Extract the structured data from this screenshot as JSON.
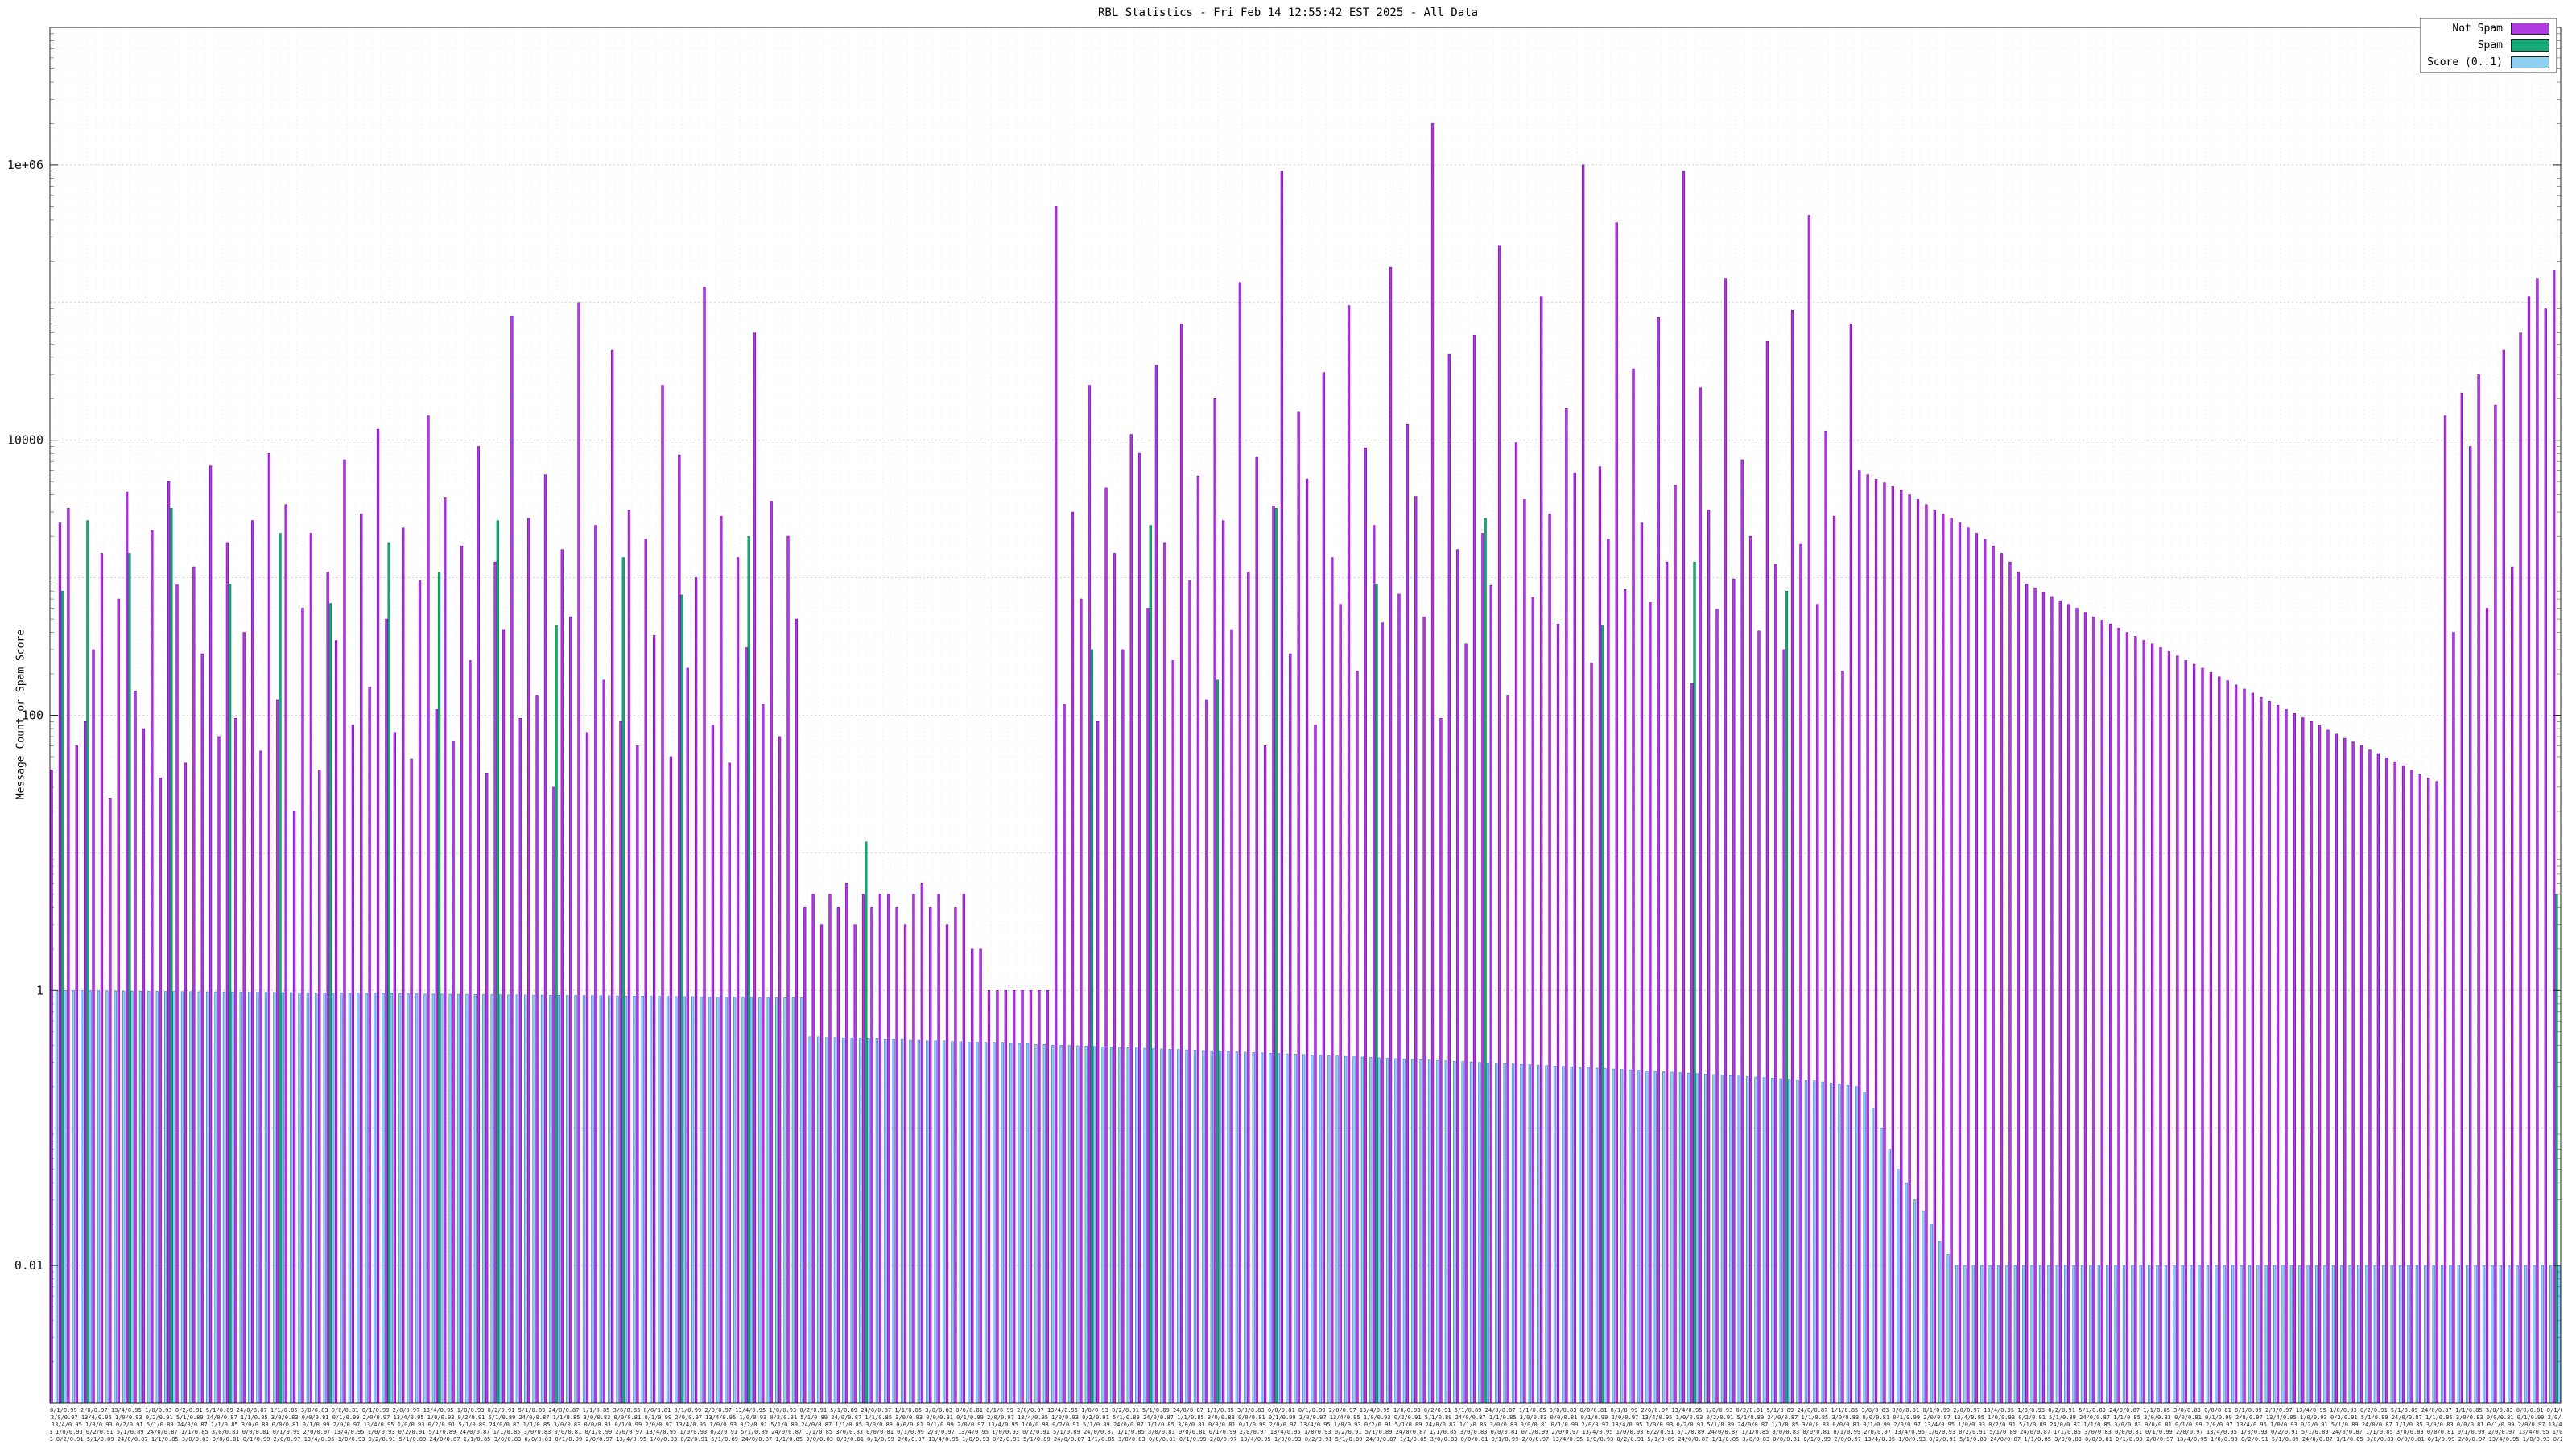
{
  "title": "RBL Statistics - Fri Feb 14 12:55:42 EST 2025 - All Data",
  "y_axis": {
    "title": "Message Count or Spam Score",
    "ticks": [
      {
        "v": 0.01,
        "label": "0.01"
      },
      {
        "v": 1,
        "label": "1"
      },
      {
        "v": 100,
        "label": "100"
      },
      {
        "v": 10000,
        "label": "10000"
      },
      {
        "v": 1000000,
        "label": "1e+06"
      }
    ]
  },
  "x_axis": {
    "note": "per-category x tick labels are illegible at capture resolution",
    "noise": "0/1/0.99 2/0/0.97 13/4/0.95 1/0/0.93 0/2/0.91 5/1/0.89 24/0/0.87 1/1/0.85 3/0/0.83 0/0/0.81 ",
    "noise_repeat": 60,
    "band_rows": 5
  },
  "chart_data": {
    "type": "bar",
    "title": "RBL Statistics - Fri Feb 14 12:55:42 EST 2025 - All Data",
    "xlabel": "",
    "ylabel": "Message Count or Spam Score",
    "log_y": true,
    "ylim": [
      0.001,
      10000000
    ],
    "grid": true,
    "legend_position": "top-right",
    "n_groups": 300,
    "series": [
      {
        "name": "Not Spam",
        "key": "not-spam",
        "color": "#b03be0",
        "stroke": "#7a00b0",
        "values": [
          40,
          2500,
          3200,
          60,
          90,
          300,
          1500,
          25,
          700,
          4200,
          150,
          80,
          2200,
          35,
          5000,
          900,
          45,
          1200,
          280,
          6500,
          70,
          1800,
          95,
          400,
          2600,
          55,
          8000,
          130,
          3400,
          20,
          600,
          2100,
          40,
          1100,
          350,
          7200,
          85,
          2900,
          160,
          12000,
          500,
          75,
          2300,
          48,
          950,
          15000,
          110,
          3800,
          65,
          1700,
          250,
          9000,
          38,
          1300,
          420,
          80000,
          95,
          2700,
          140,
          5600,
          30,
          1600,
          520,
          100000,
          75,
          2400,
          180,
          45000,
          90,
          3100,
          60,
          1900,
          380,
          25000,
          50,
          7800,
          220,
          1000,
          130000,
          85,
          2800,
          45,
          1400,
          310,
          60000,
          120,
          3600,
          70,
          2000,
          500,
          4,
          5,
          3,
          5,
          4,
          6,
          3,
          5,
          4,
          5,
          5,
          4,
          3,
          5,
          6,
          4,
          5,
          3,
          4,
          5,
          2,
          2,
          1,
          1,
          1,
          1,
          1,
          1,
          1,
          1,
          500000,
          120,
          3000,
          700,
          25000,
          90,
          4500,
          1500,
          300,
          11000,
          8000,
          600,
          35000,
          1800,
          250,
          70000,
          950,
          5500,
          130,
          20000,
          2600,
          420,
          140000,
          1100,
          7500,
          60,
          3300,
          900000,
          280,
          16000,
          5200,
          85,
          31000,
          1400,
          640,
          95000,
          210,
          8800,
          2400,
          470,
          180000,
          760,
          13000,
          3900,
          520,
          2000000,
          95,
          42000,
          1600,
          330,
          58000,
          2100,
          880,
          260000,
          140,
          9600,
          3700,
          720,
          110000,
          2900,
          460,
          17000,
          5800,
          1000000,
          240,
          6400,
          1900,
          380000,
          820,
          33000,
          2500,
          660,
          78000,
          1300,
          4700,
          900000,
          170,
          24000,
          3100,
          590,
          150000,
          980,
          7200,
          2000,
          410,
          52000,
          1250,
          300,
          88000,
          1750,
          430000,
          640,
          11500,
          2800,
          210,
          70000,
          6000,
          5600,
          5200,
          4900,
          4600,
          4300,
          4000,
          3700,
          3400,
          3100,
          2900,
          2700,
          2500,
          2300,
          2100,
          1900,
          1700,
          1500,
          1300,
          1100,
          900,
          840,
          780,
          730,
          680,
          640,
          600,
          560,
          520,
          490,
          460,
          430,
          400,
          375,
          350,
          330,
          310,
          290,
          270,
          250,
          235,
          220,
          205,
          190,
          178,
          166,
          155,
          145,
          135,
          126,
          118,
          110,
          103,
          96,
          90,
          84,
          78,
          73,
          68,
          64,
          60,
          56,
          52,
          49,
          46,
          43,
          40,
          37,
          35,
          33,
          15000,
          400,
          22000,
          9000,
          30000,
          600,
          18000,
          45000,
          1200,
          60000,
          110000,
          150000,
          90000,
          170000
        ]
      },
      {
        "name": "Spam",
        "key": "spam",
        "color": "#17a878",
        "stroke": "#0b7a52",
        "length": 300,
        "values_sparse": {
          "1": 800,
          "4": 2600,
          "9": 1500,
          "14": 3200,
          "21": 900,
          "27": 2100,
          "33": 650,
          "40": 1800,
          "46": 1100,
          "53": 2600,
          "60": 450,
          "68": 1400,
          "75": 750,
          "83": 2000,
          "97": 12,
          "124": 300,
          "131": 2400,
          "139": 180,
          "146": 3200,
          "158": 900,
          "171": 2700,
          "185": 450,
          "196": 1300,
          "207": 800,
          "299": 5
        }
      },
      {
        "name": "Score (0..1)",
        "key": "score",
        "color": "#8fd0f0",
        "stroke": "#4169e1",
        "values": [
          1,
          0.999,
          0.997,
          0.996,
          0.995,
          0.993,
          0.992,
          0.991,
          0.989,
          0.988,
          0.987,
          0.985,
          0.984,
          0.983,
          0.981,
          0.98,
          0.979,
          0.977,
          0.976,
          0.975,
          0.974,
          0.972,
          0.971,
          0.97,
          0.968,
          0.967,
          0.966,
          0.964,
          0.963,
          0.962,
          0.961,
          0.959,
          0.958,
          0.957,
          0.955,
          0.954,
          0.953,
          0.951,
          0.95,
          0.949,
          0.948,
          0.946,
          0.945,
          0.944,
          0.942,
          0.941,
          0.94,
          0.938,
          0.937,
          0.936,
          0.935,
          0.933,
          0.932,
          0.931,
          0.929,
          0.928,
          0.927,
          0.925,
          0.924,
          0.923,
          0.922,
          0.92,
          0.919,
          0.918,
          0.916,
          0.915,
          0.914,
          0.912,
          0.911,
          0.91,
          0.909,
          0.907,
          0.906,
          0.905,
          0.903,
          0.902,
          0.901,
          0.899,
          0.898,
          0.897,
          0.896,
          0.894,
          0.893,
          0.892,
          0.89,
          0.889,
          0.888,
          0.886,
          0.885,
          0.884,
          0.46,
          0.46,
          0.455,
          0.455,
          0.45,
          0.45,
          0.45,
          0.445,
          0.445,
          0.44,
          0.44,
          0.44,
          0.435,
          0.435,
          0.43,
          0.43,
          0.43,
          0.425,
          0.425,
          0.42,
          0.42,
          0.42,
          0.415,
          0.415,
          0.41,
          0.41,
          0.41,
          0.405,
          0.405,
          0.4,
          0.4,
          0.398,
          0.396,
          0.394,
          0.392,
          0.39,
          0.388,
          0.386,
          0.384,
          0.382,
          0.38,
          0.378,
          0.376,
          0.374,
          0.372,
          0.37,
          0.368,
          0.366,
          0.364,
          0.362,
          0.36,
          0.358,
          0.356,
          0.354,
          0.352,
          0.35,
          0.348,
          0.346,
          0.344,
          0.342,
          0.34,
          0.338,
          0.336,
          0.334,
          0.332,
          0.33,
          0.328,
          0.326,
          0.324,
          0.322,
          0.32,
          0.318,
          0.316,
          0.314,
          0.312,
          0.31,
          0.308,
          0.306,
          0.304,
          0.302,
          0.3,
          0.298,
          0.296,
          0.294,
          0.292,
          0.29,
          0.288,
          0.286,
          0.284,
          0.282,
          0.28,
          0.278,
          0.276,
          0.274,
          0.272,
          0.27,
          0.268,
          0.266,
          0.264,
          0.262,
          0.26,
          0.258,
          0.256,
          0.254,
          0.252,
          0.25,
          0.248,
          0.246,
          0.244,
          0.242,
          0.24,
          0.238,
          0.236,
          0.234,
          0.232,
          0.23,
          0.228,
          0.226,
          0.224,
          0.222,
          0.22,
          0.216,
          0.212,
          0.208,
          0.204,
          0.2,
          0.18,
          0.14,
          0.1,
          0.07,
          0.05,
          0.04,
          0.03,
          0.025,
          0.02,
          0.015,
          0.012,
          0.01,
          0.01,
          0.01,
          0.01,
          0.01,
          0.01,
          0.01,
          0.01,
          0.01,
          0.01,
          0.01,
          0.01,
          0.01,
          0.01,
          0.01,
          0.01,
          0.01,
          0.01,
          0.01,
          0.01,
          0.01,
          0.01,
          0.01,
          0.01,
          0.01,
          0.01,
          0.01,
          0.01,
          0.01,
          0.01,
          0.01,
          0.01,
          0.01,
          0.01,
          0.01,
          0.01,
          0.01,
          0.01,
          0.01,
          0.01,
          0.01,
          0.01,
          0.01,
          0.01,
          0.01,
          0.01,
          0.01,
          0.01,
          0.01,
          0.01,
          0.01,
          0.01,
          0.01,
          0.01,
          0.01,
          0.01,
          0.01,
          0.01,
          0.01,
          0.01,
          0.01,
          0.01,
          0.01,
          0.01,
          0.01,
          0.01,
          0.01,
          0.01,
          0.01,
          0.01,
          0.01,
          0.01,
          0.01
        ]
      }
    ]
  }
}
